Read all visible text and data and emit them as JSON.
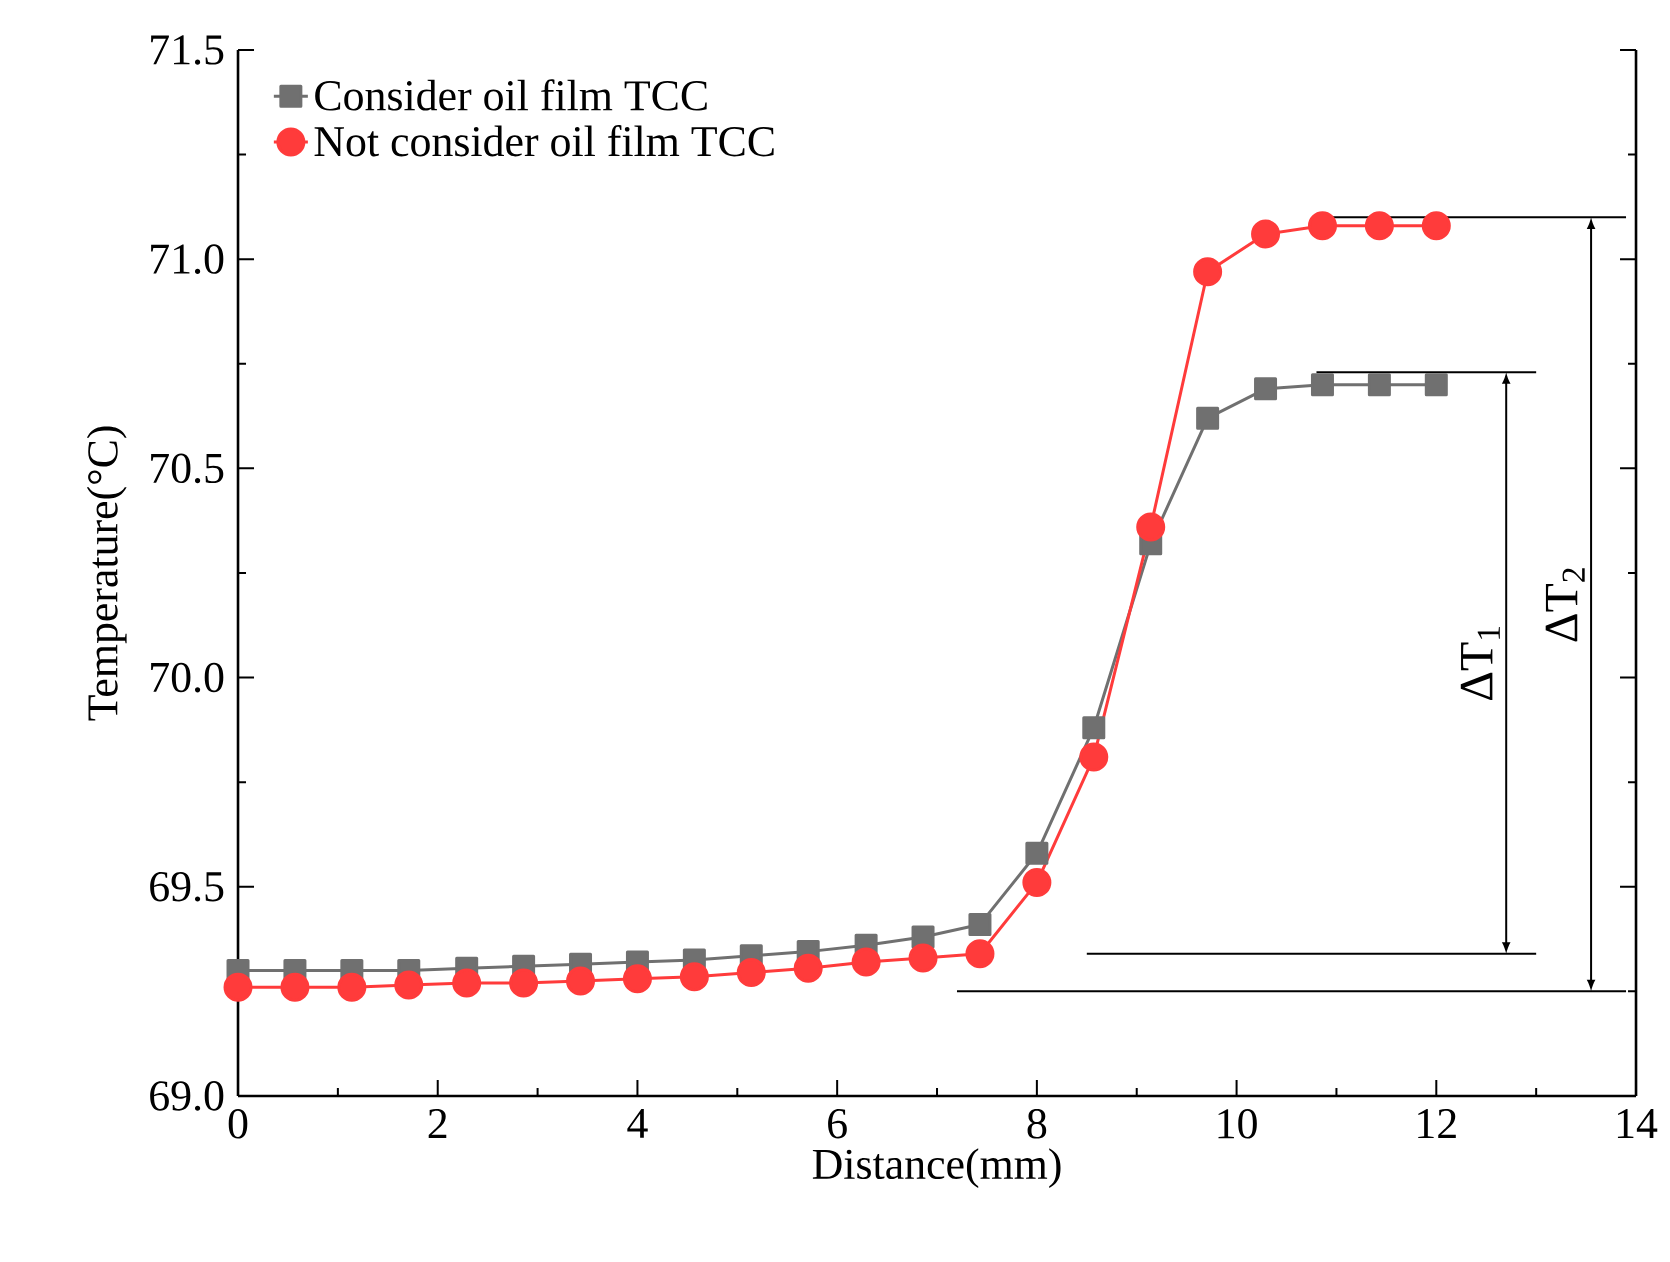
{
  "chart_data": {
    "type": "line",
    "xlabel": "Distance(mm)",
    "ylabel": "Temperature(°C)",
    "x": [
      0,
      0.57,
      1.14,
      1.71,
      2.29,
      2.86,
      3.43,
      4.0,
      4.57,
      5.14,
      5.71,
      6.29,
      6.86,
      7.43,
      8.0,
      8.57,
      9.14,
      9.71,
      10.29,
      10.86,
      11.43,
      12.0
    ],
    "series": [
      {
        "name": "Consider oil film TCC",
        "color": "#707070",
        "marker": "square",
        "values": [
          69.3,
          69.3,
          69.3,
          69.3,
          69.305,
          69.31,
          69.315,
          69.32,
          69.325,
          69.335,
          69.345,
          69.36,
          69.38,
          69.41,
          69.58,
          69.88,
          70.32,
          70.62,
          70.69,
          70.7,
          70.7,
          70.7
        ]
      },
      {
        "name": "Not consider oil film TCC",
        "color": "#ff3b3b",
        "marker": "circle",
        "values": [
          69.26,
          69.26,
          69.26,
          69.265,
          69.27,
          69.27,
          69.275,
          69.28,
          69.285,
          69.295,
          69.305,
          69.32,
          69.33,
          69.34,
          69.51,
          69.81,
          70.36,
          70.97,
          71.06,
          71.08,
          71.08,
          71.08
        ]
      }
    ],
    "xlim": [
      0,
      14
    ],
    "ylim": [
      69.0,
      71.5
    ],
    "xticks": [
      0,
      2,
      4,
      6,
      8,
      10,
      12,
      14
    ],
    "yticks": [
      {
        "value": 69.0,
        "label": "69.0"
      },
      {
        "value": 69.5,
        "label": "69.5"
      },
      {
        "value": 70.0,
        "label": "70.0"
      },
      {
        "value": 70.5,
        "label": "70.5"
      },
      {
        "value": 71.0,
        "label": "71.0"
      },
      {
        "value": 71.5,
        "label": "71.5"
      }
    ],
    "legend": "top left",
    "ref_lines": [
      {
        "axis": "y",
        "value": 70.73,
        "color": "#000000"
      },
      {
        "axis": "y",
        "value": 69.34,
        "color": "#000000"
      },
      {
        "axis": "y",
        "value": 71.1,
        "color": "#000000"
      },
      {
        "axis": "y",
        "value": 69.25,
        "color": "#000000"
      }
    ],
    "annotations": [
      "ΔT$_{1}$",
      "ΔT$_{2}$"
    ]
  }
}
